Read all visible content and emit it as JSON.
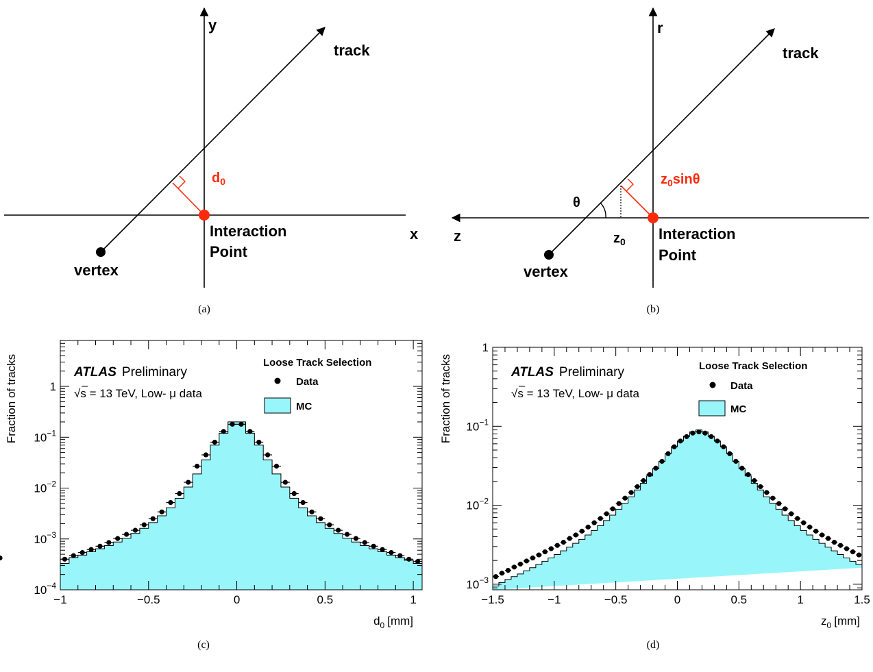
{
  "diagram_a": {
    "caption": "(a)",
    "x_axis": "x",
    "y_axis": "y",
    "track": "track",
    "vertex": "vertex",
    "ip_line1": "Interaction",
    "ip_line2": "Point",
    "param_main": "d",
    "param_sub": "0",
    "colors": {
      "highlight": "#ff2a0a",
      "line": "#000000"
    }
  },
  "diagram_b": {
    "caption": "(b)",
    "x_axis": "z",
    "y_axis": "r",
    "track": "track",
    "vertex": "vertex",
    "ip_line1": "Interaction",
    "ip_line2": "Point",
    "angle": "θ",
    "z0_main": "z",
    "z0_sub": "0",
    "param_main": "z",
    "param_sub": "0",
    "param_rest": "sinθ"
  },
  "chart_data": [
    {
      "type": "histogram",
      "caption": "(c)",
      "xlabel_main": "d",
      "xlabel_sub": "0",
      "xlabel_unit": "[mm]",
      "ylabel": "Fraction of tracks",
      "y_scale": "log",
      "xlim": [
        -1.0,
        1.05
      ],
      "ylim": [
        0.0001,
        8
      ],
      "x_ticks": [
        {
          "v": -1,
          "label": "−1"
        },
        {
          "v": -0.5,
          "label": "−0.5"
        },
        {
          "v": 0,
          "label": "0"
        },
        {
          "v": 0.5,
          "label": "0.5"
        },
        {
          "v": 1,
          "label": "1"
        }
      ],
      "y_ticks": [
        {
          "v": 1,
          "base": "1",
          "exp": ""
        },
        {
          "v": 0.1,
          "base": "10",
          "exp": "−1"
        },
        {
          "v": 0.01,
          "base": "10",
          "exp": "−2"
        },
        {
          "v": 0.001,
          "base": "10",
          "exp": "−3"
        },
        {
          "v": 0.0001,
          "base": "10",
          "exp": "−4"
        }
      ],
      "atlas": "ATLAS",
      "preliminary": "Preliminary",
      "sqrt_s": "s = 13 TeV, Low- μ data",
      "legend_title": "Loose Track Selection",
      "legend_data": "Data",
      "legend_mc": "MC",
      "bin_edges": [
        -1.0,
        -0.95,
        -0.9,
        -0.85,
        -0.8,
        -0.75,
        -0.7,
        -0.65,
        -0.6,
        -0.55,
        -0.5,
        -0.45,
        -0.4,
        -0.35,
        -0.3,
        -0.25,
        -0.2,
        -0.15,
        -0.1,
        -0.05,
        0.0,
        0.05,
        0.1,
        0.15,
        0.2,
        0.25,
        0.3,
        0.35,
        0.4,
        0.45,
        0.5,
        0.55,
        0.6,
        0.65,
        0.7,
        0.75,
        0.8,
        0.85,
        0.9,
        0.95,
        1.0,
        1.05
      ],
      "mc_values": [
        0.00033,
        0.00043,
        0.00048,
        0.00056,
        0.00064,
        0.00074,
        0.00087,
        0.00103,
        0.00128,
        0.00162,
        0.0021,
        0.00285,
        0.0041,
        0.0063,
        0.0105,
        0.019,
        0.036,
        0.07,
        0.12,
        0.2,
        0.2,
        0.12,
        0.07,
        0.036,
        0.019,
        0.0105,
        0.0063,
        0.0041,
        0.00285,
        0.0021,
        0.00162,
        0.00128,
        0.00103,
        0.00087,
        0.00074,
        0.00064,
        0.00056,
        0.00048,
        0.00043,
        0.00038,
        0.00033
      ],
      "data_values": [
        0.0004,
        0.00047,
        0.00054,
        0.00062,
        0.00072,
        0.00085,
        0.00102,
        0.00123,
        0.00148,
        0.0019,
        0.0025,
        0.0034,
        0.0052,
        0.0078,
        0.013,
        0.027,
        0.045,
        0.08,
        0.13,
        0.18,
        0.18,
        0.13,
        0.08,
        0.045,
        0.027,
        0.013,
        0.0078,
        0.0052,
        0.0034,
        0.0025,
        0.0019,
        0.00148,
        0.00123,
        0.00102,
        0.00085,
        0.00072,
        0.00062,
        0.00054,
        0.00047,
        0.0004,
        0.00036
      ]
    },
    {
      "type": "histogram",
      "caption": "(d)",
      "xlabel_main": "z",
      "xlabel_sub": "0",
      "xlabel_unit": "[mm]",
      "ylabel": "Fraction of tracks",
      "y_scale": "log",
      "xlim": [
        -1.5,
        1.5
      ],
      "ylim": [
        0.00085,
        1.0
      ],
      "x_ticks": [
        {
          "v": -1.5,
          "label": "−1.5"
        },
        {
          "v": -1,
          "label": "−1"
        },
        {
          "v": -0.5,
          "label": "−0.5"
        },
        {
          "v": 0,
          "label": "0"
        },
        {
          "v": 0.5,
          "label": "0.5"
        },
        {
          "v": 1,
          "label": "1"
        },
        {
          "v": 1.5,
          "label": "1.5"
        }
      ],
      "y_ticks": [
        {
          "v": 1,
          "base": "1",
          "exp": ""
        },
        {
          "v": 0.1,
          "base": "10",
          "exp": "−1"
        },
        {
          "v": 0.01,
          "base": "10",
          "exp": "−2"
        },
        {
          "v": 0.001,
          "base": "10",
          "exp": "−3"
        }
      ],
      "atlas": "ATLAS",
      "preliminary": "Preliminary",
      "sqrt_s": "s = 13 TeV, Low- μ data",
      "legend_title": "Loose Track Selection",
      "legend_data": "Data",
      "legend_mc": "MC",
      "bin_edges": [
        -1.5,
        -1.45,
        -1.4,
        -1.35,
        -1.3,
        -1.25,
        -1.2,
        -1.15,
        -1.1,
        -1.05,
        -1.0,
        -0.95,
        -0.9,
        -0.85,
        -0.8,
        -0.75,
        -0.7,
        -0.65,
        -0.6,
        -0.55,
        -0.5,
        -0.45,
        -0.4,
        -0.35,
        -0.3,
        -0.25,
        -0.2,
        -0.15,
        -0.1,
        -0.05,
        0.0,
        0.05,
        0.1,
        0.15,
        0.2,
        0.25,
        0.3,
        0.35,
        0.4,
        0.45,
        0.5,
        0.55,
        0.6,
        0.65,
        0.7,
        0.75,
        0.8,
        0.85,
        0.9,
        0.95,
        1.0,
        1.05,
        1.1,
        1.15,
        1.2,
        1.25,
        1.3,
        1.35,
        1.4,
        1.45,
        1.5
      ],
      "mc_values": [
        0.00095,
        0.00105,
        0.00115,
        0.00125,
        0.00135,
        0.00148,
        0.00162,
        0.00178,
        0.00195,
        0.00215,
        0.00238,
        0.00265,
        0.00295,
        0.0033,
        0.0037,
        0.0042,
        0.0048,
        0.0055,
        0.0064,
        0.0075,
        0.0089,
        0.0106,
        0.0128,
        0.0156,
        0.019,
        0.0235,
        0.029,
        0.036,
        0.045,
        0.055,
        0.065,
        0.075,
        0.085,
        0.09,
        0.085,
        0.075,
        0.065,
        0.055,
        0.045,
        0.036,
        0.029,
        0.0235,
        0.019,
        0.0156,
        0.0128,
        0.0106,
        0.0089,
        0.0075,
        0.0064,
        0.0055,
        0.0048,
        0.0042,
        0.0037,
        0.0033,
        0.00295,
        0.00265,
        0.00238,
        0.00215,
        0.00195,
        0.00178,
        0.00162
      ],
      "data_values": [
        0.00125,
        0.00138,
        0.0015,
        0.00165,
        0.0018,
        0.00197,
        0.00215,
        0.00235,
        0.00257,
        0.00282,
        0.0031,
        0.0034,
        0.0038,
        0.0042,
        0.0047,
        0.0053,
        0.006,
        0.0068,
        0.0078,
        0.009,
        0.0105,
        0.0123,
        0.0145,
        0.0172,
        0.0205,
        0.0245,
        0.0295,
        0.036,
        0.045,
        0.055,
        0.065,
        0.074,
        0.082,
        0.085,
        0.082,
        0.074,
        0.065,
        0.055,
        0.045,
        0.036,
        0.0295,
        0.0245,
        0.0205,
        0.0172,
        0.0145,
        0.0123,
        0.0105,
        0.009,
        0.0078,
        0.0068,
        0.006,
        0.0053,
        0.0047,
        0.0042,
        0.0038,
        0.0034,
        0.0031,
        0.00282,
        0.00257,
        0.00235,
        0.00215
      ],
      "colors": {
        "mc_fill": "#98f6fb",
        "data": "#000000"
      }
    }
  ]
}
